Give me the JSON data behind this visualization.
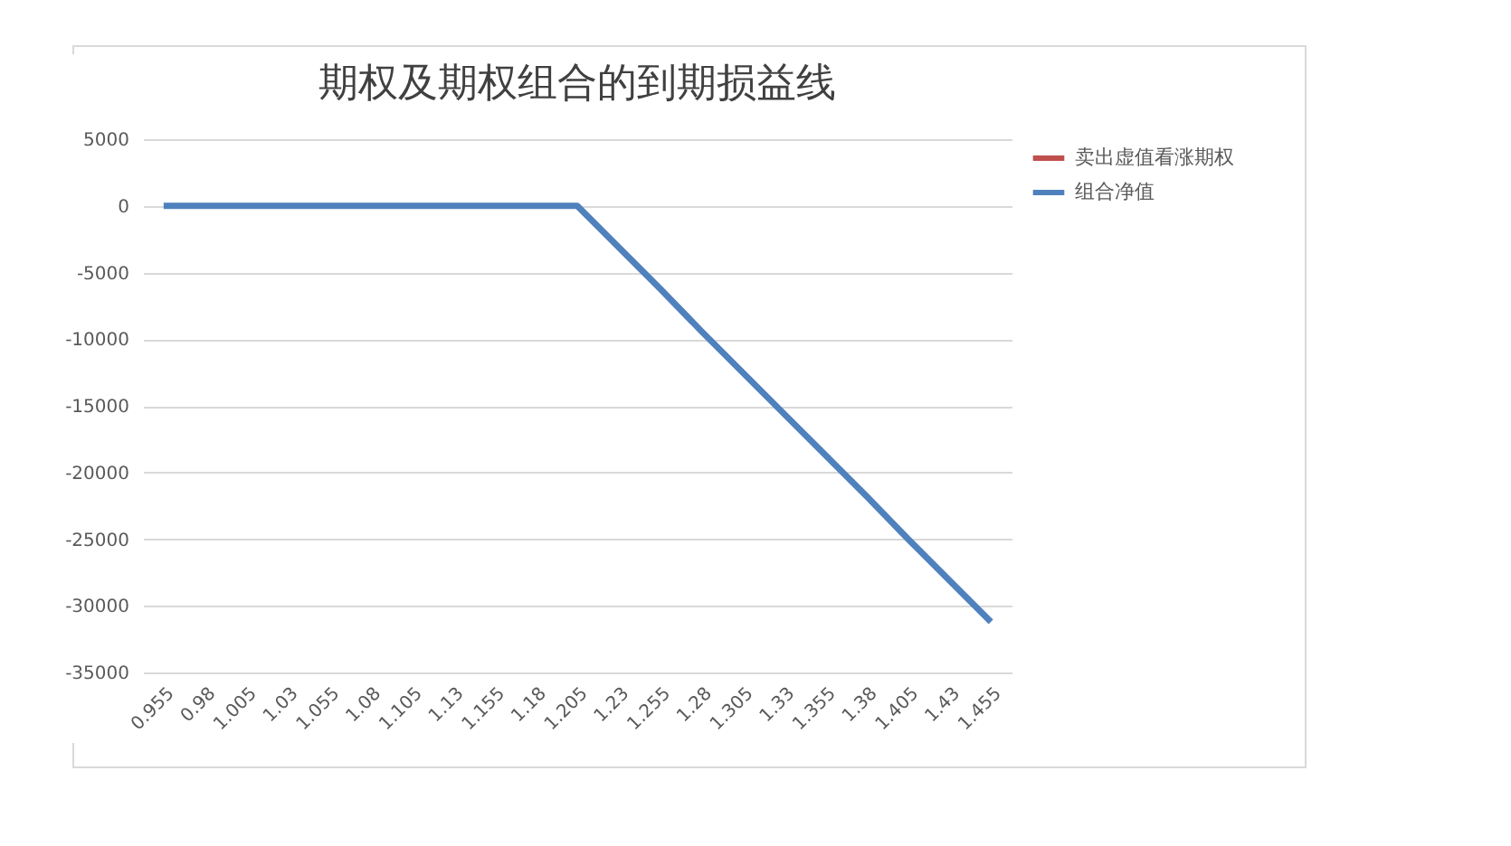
{
  "chart_data": {
    "type": "line",
    "title": "期权及期权组合的到期损益线",
    "categories": [
      "0.955",
      "0.98",
      "1.005",
      "1.03",
      "1.055",
      "1.08",
      "1.105",
      "1.13",
      "1.155",
      "1.18",
      "1.205",
      "1.23",
      "1.255",
      "1.28",
      "1.305",
      "1.33",
      "1.355",
      "1.38",
      "1.405",
      "1.43",
      "1.455"
    ],
    "series": [
      {
        "name": "卖出虚值看涨期权",
        "color": "#c0504d",
        "values": [
          null,
          null,
          null,
          null,
          null,
          null,
          null,
          null,
          null,
          null,
          null,
          null,
          null,
          null,
          null,
          null,
          null,
          null,
          null,
          null,
          null
        ]
      },
      {
        "name": "组合净值",
        "color": "#4f81bd",
        "values": [
          0,
          0,
          0,
          0,
          0,
          0,
          0,
          0,
          0,
          0,
          0,
          -3100,
          -6200,
          -9400,
          -12500,
          -15600,
          -18700,
          -21800,
          -25000,
          -28100,
          -31200
        ]
      }
    ],
    "ylim": [
      -35000,
      5000
    ],
    "yticks": [
      -35000,
      -30000,
      -25000,
      -20000,
      -15000,
      -10000,
      -5000,
      0,
      5000
    ],
    "grid": "y",
    "legend": "top right",
    "marker": "none",
    "line_style": "solid"
  }
}
